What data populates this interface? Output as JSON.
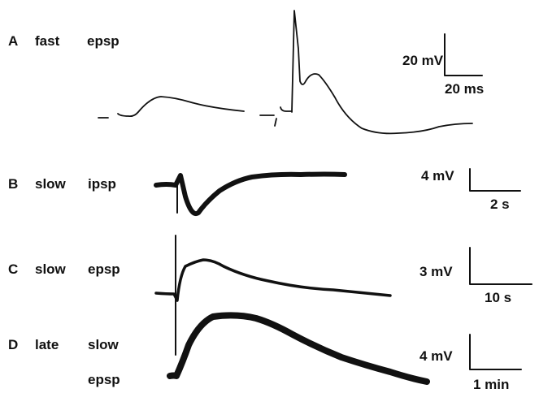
{
  "panels": [
    {
      "letter": "A",
      "label_words": [
        "fast",
        "epsp"
      ],
      "scale_v": "20 mV",
      "scale_h": "20 ms"
    },
    {
      "letter": "B",
      "label_words": [
        "slow",
        "ipsp"
      ],
      "scale_v": "4 mV",
      "scale_h": "2 s"
    },
    {
      "letter": "C",
      "label_words": [
        "slow",
        "epsp"
      ],
      "scale_v": "3 mV",
      "scale_h": "10 s"
    },
    {
      "letter": "D",
      "label_words": [
        "late",
        "slow",
        "epsp"
      ],
      "scale_v": "4 mV",
      "scale_h": "1 min"
    }
  ],
  "trace_color": "#111111"
}
